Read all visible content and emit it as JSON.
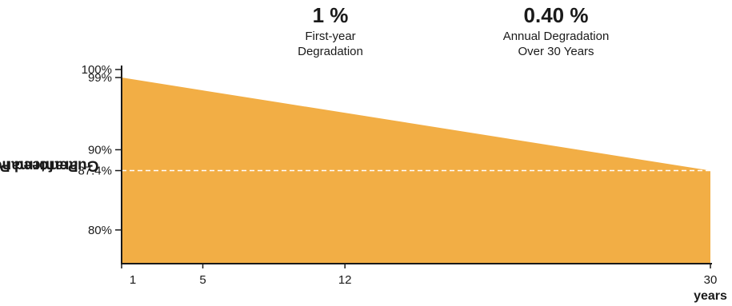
{
  "stats": [
    {
      "value": "1 %",
      "caption_line1": "First-year",
      "caption_line2": "Degradation"
    },
    {
      "value": "0.40 %",
      "caption_line1": "Annual Degradation",
      "caption_line2": "Over 30 Years"
    }
  ],
  "colors": {
    "fill": "#F2AE45",
    "axis": "#1a1a1a",
    "dash": "#ffffff",
    "text": "#1a1a1a"
  },
  "chart_data": {
    "type": "area",
    "ylabel_line1": "Guaranteed Power",
    "ylabel_line2": "Performance",
    "xlabel": "years",
    "x": [
      1,
      30
    ],
    "y": [
      99,
      87.4
    ],
    "xticks": [
      1,
      5,
      12,
      30
    ],
    "xtick_labels": [
      "1",
      "5",
      "12",
      "30"
    ],
    "yticks": [
      100,
      99,
      90,
      87.4,
      80
    ],
    "ytick_labels": [
      "100%",
      "99%",
      "90%",
      "87.4%",
      "80%"
    ],
    "ylim": [
      75.8,
      100.5
    ],
    "xlim": [
      1,
      30
    ],
    "reference_line": {
      "y": 87.4,
      "style": "dashed"
    },
    "grid": false
  }
}
